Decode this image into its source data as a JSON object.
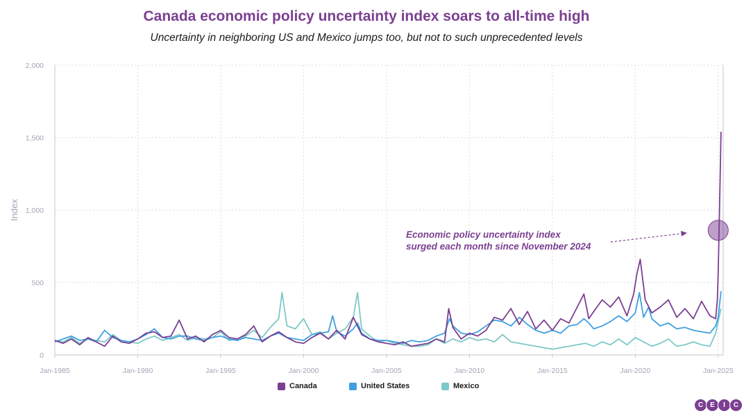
{
  "header": {
    "title": "Canada economic policy uncertainty index soars to all-time high",
    "subtitle": "Uncertainty in neighboring US and Mexico jumps too, but not to such unprecedented levels"
  },
  "annotation": {
    "line1": "Economic policy uncertainty index",
    "line2": "surged each month since November 2024"
  },
  "logo": {
    "letters": [
      "C",
      "E",
      "I",
      "C"
    ]
  },
  "colors": {
    "canada": "#7b3f91",
    "united_states": "#3f9fe0",
    "mexico": "#7cc8c8"
  },
  "chart_data": {
    "type": "line",
    "ylabel": "Index",
    "ylim": [
      0,
      2000
    ],
    "yticks": [
      0,
      500,
      1000,
      1500,
      2000
    ],
    "ytick_labels": [
      "0",
      "500",
      "1,000",
      "1,500",
      "2,000"
    ],
    "xlim": [
      1985.0,
      2025.3
    ],
    "xticks": [
      1985,
      1990,
      1995,
      2000,
      2005,
      2010,
      2015,
      2020,
      2025
    ],
    "xtick_labels": [
      "Jan-1985",
      "Jan-1990",
      "Jan-1995",
      "Jan-2000",
      "Jan-2005",
      "Jan-2010",
      "Jan-2015",
      "Jan-2020",
      "Jan-2025"
    ],
    "grid": true,
    "legend_position": "bottom-center",
    "series": [
      {
        "name": "Canada",
        "x": [
          1985.0,
          1985.5,
          1986.0,
          1986.5,
          1987.0,
          1987.5,
          1988.0,
          1988.5,
          1989.0,
          1989.5,
          1990.0,
          1990.5,
          1991.0,
          1991.5,
          1992.0,
          1992.5,
          1993.0,
          1993.5,
          1994.0,
          1994.5,
          1995.0,
          1995.5,
          1996.0,
          1996.5,
          1997.0,
          1997.5,
          1998.0,
          1998.5,
          1999.0,
          1999.5,
          2000.0,
          2000.5,
          2001.0,
          2001.5,
          2002.0,
          2002.5,
          2003.0,
          2003.5,
          2004.0,
          2004.5,
          2005.0,
          2005.5,
          2006.0,
          2006.5,
          2007.0,
          2007.5,
          2008.0,
          2008.5,
          2008.75,
          2009.0,
          2009.5,
          2010.0,
          2010.5,
          2011.0,
          2011.5,
          2012.0,
          2012.5,
          2013.0,
          2013.5,
          2014.0,
          2014.5,
          2015.0,
          2015.5,
          2016.0,
          2016.5,
          2016.9,
          2017.2,
          2017.5,
          2018.0,
          2018.5,
          2019.0,
          2019.5,
          2019.9,
          2020.1,
          2020.3,
          2020.6,
          2021.0,
          2021.5,
          2022.0,
          2022.5,
          2023.0,
          2023.5,
          2024.0,
          2024.5,
          2024.85,
          2024.95,
          2025.0,
          2025.08,
          2025.17
        ],
        "y": [
          100,
          80,
          110,
          70,
          120,
          90,
          60,
          130,
          90,
          80,
          110,
          150,
          160,
          120,
          130,
          240,
          110,
          130,
          90,
          140,
          170,
          120,
          110,
          140,
          200,
          90,
          130,
          160,
          120,
          90,
          80,
          120,
          150,
          110,
          170,
          110,
          260,
          140,
          110,
          90,
          80,
          70,
          90,
          60,
          70,
          80,
          110,
          90,
          320,
          190,
          110,
          150,
          130,
          170,
          260,
          240,
          320,
          210,
          300,
          180,
          240,
          170,
          250,
          220,
          330,
          420,
          250,
          300,
          380,
          330,
          400,
          270,
          420,
          560,
          660,
          380,
          290,
          330,
          380,
          260,
          320,
          250,
          370,
          270,
          250,
          380,
          560,
          1000,
          1540
        ]
      },
      {
        "name": "United States",
        "x": [
          1985.0,
          1985.5,
          1986.0,
          1986.5,
          1987.0,
          1987.5,
          1988.0,
          1988.5,
          1989.0,
          1989.5,
          1990.0,
          1990.5,
          1991.0,
          1991.5,
          1992.0,
          1992.5,
          1993.0,
          1993.5,
          1994.0,
          1994.5,
          1995.0,
          1995.5,
          1996.0,
          1996.5,
          1997.0,
          1997.5,
          1998.0,
          1998.5,
          1999.0,
          1999.5,
          2000.0,
          2000.5,
          2001.0,
          2001.5,
          2001.75,
          2002.0,
          2002.5,
          2003.0,
          2003.25,
          2003.5,
          2004.0,
          2004.5,
          2005.0,
          2005.5,
          2006.0,
          2006.5,
          2007.0,
          2007.5,
          2008.0,
          2008.5,
          2008.8,
          2009.0,
          2009.5,
          2010.0,
          2010.5,
          2011.0,
          2011.5,
          2012.0,
          2012.5,
          2013.0,
          2013.5,
          2014.0,
          2014.5,
          2015.0,
          2015.5,
          2016.0,
          2016.5,
          2016.9,
          2017.2,
          2017.5,
          2018.0,
          2018.5,
          2019.0,
          2019.5,
          2020.0,
          2020.25,
          2020.5,
          2020.8,
          2021.0,
          2021.5,
          2022.0,
          2022.5,
          2023.0,
          2023.5,
          2024.0,
          2024.5,
          2024.85,
          2025.0,
          2025.17
        ],
        "y": [
          90,
          110,
          130,
          100,
          110,
          90,
          170,
          120,
          100,
          90,
          110,
          140,
          180,
          120,
          110,
          130,
          130,
          110,
          100,
          120,
          130,
          110,
          100,
          120,
          110,
          100,
          130,
          150,
          120,
          110,
          100,
          140,
          150,
          160,
          270,
          160,
          130,
          180,
          220,
          150,
          110,
          100,
          100,
          90,
          80,
          100,
          90,
          100,
          130,
          150,
          250,
          200,
          150,
          140,
          160,
          200,
          240,
          230,
          200,
          260,
          210,
          170,
          150,
          170,
          150,
          200,
          210,
          250,
          220,
          180,
          200,
          230,
          270,
          230,
          290,
          430,
          260,
          330,
          250,
          200,
          220,
          180,
          190,
          170,
          160,
          150,
          200,
          260,
          440
        ]
      },
      {
        "name": "Mexico",
        "x": [
          1985.0,
          1985.5,
          1986.0,
          1986.5,
          1987.0,
          1987.5,
          1988.0,
          1988.5,
          1989.0,
          1989.5,
          1990.0,
          1990.5,
          1991.0,
          1991.5,
          1992.0,
          1992.5,
          1993.0,
          1993.5,
          1994.0,
          1994.5,
          1995.0,
          1995.5,
          1996.0,
          1996.5,
          1997.0,
          1997.5,
          1998.0,
          1998.5,
          1998.7,
          1999.0,
          1999.5,
          2000.0,
          2000.5,
          2001.0,
          2001.5,
          2002.0,
          2002.5,
          2003.0,
          2003.25,
          2003.5,
          2004.0,
          2004.5,
          2005.0,
          2005.5,
          2006.0,
          2006.5,
          2007.0,
          2007.5,
          2008.0,
          2008.5,
          2009.0,
          2009.5,
          2010.0,
          2010.5,
          2011.0,
          2011.5,
          2012.0,
          2012.5,
          2013.0,
          2013.5,
          2014.0,
          2014.5,
          2015.0,
          2015.5,
          2016.0,
          2016.5,
          2017.0,
          2017.5,
          2018.0,
          2018.5,
          2019.0,
          2019.5,
          2020.0,
          2020.5,
          2021.0,
          2021.5,
          2022.0,
          2022.5,
          2023.0,
          2023.5,
          2024.0,
          2024.5,
          2024.85,
          2025.0,
          2025.17
        ],
        "y": [
          100,
          90,
          120,
          80,
          110,
          100,
          90,
          140,
          100,
          90,
          80,
          110,
          130,
          100,
          120,
          140,
          100,
          120,
          110,
          120,
          160,
          100,
          110,
          130,
          170,
          120,
          190,
          250,
          430,
          200,
          180,
          250,
          140,
          160,
          110,
          150,
          180,
          260,
          430,
          180,
          130,
          90,
          100,
          80,
          70,
          60,
          60,
          70,
          110,
          80,
          110,
          90,
          120,
          100,
          110,
          90,
          140,
          90,
          80,
          70,
          60,
          50,
          40,
          50,
          60,
          70,
          80,
          60,
          90,
          70,
          110,
          70,
          120,
          90,
          60,
          80,
          110,
          60,
          70,
          90,
          70,
          60,
          150,
          230,
          320
        ]
      }
    ]
  }
}
